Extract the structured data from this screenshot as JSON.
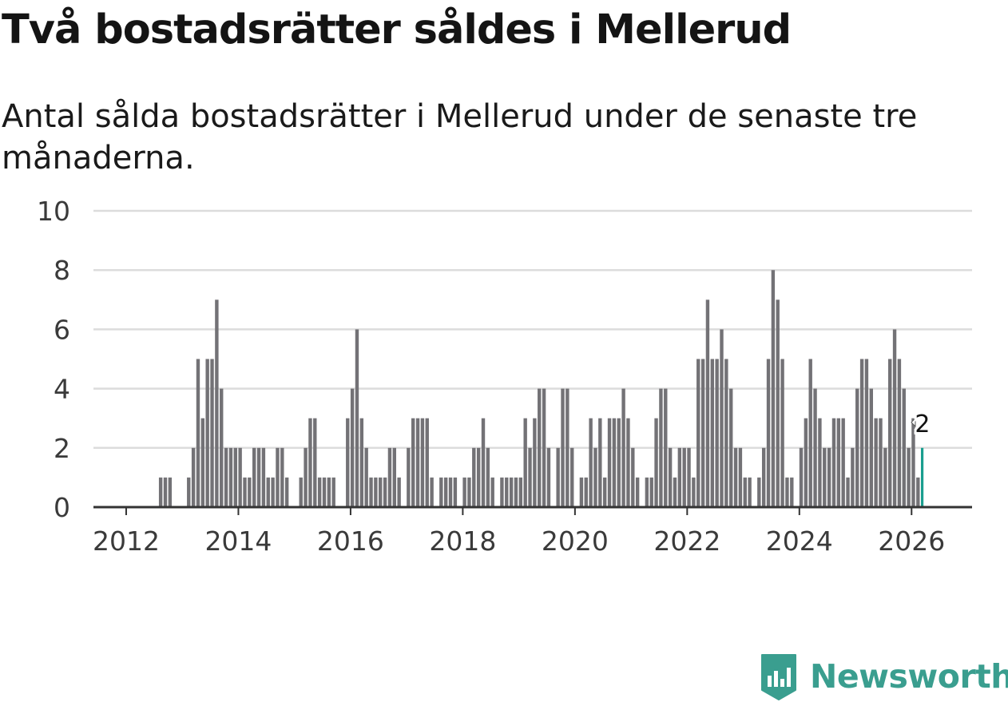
{
  "title": "Två bostadsrätter såldes i Mellerud",
  "subtitle": "Antal sålda bostadsrätter i Mellerud under de senaste tre månaderna.",
  "brand": {
    "name": "Newsworthy",
    "color": "#3a9e8f"
  },
  "colors": {
    "bar": "#737276",
    "highlight": "#1a9e8f",
    "grid": "#dcdcdc",
    "axis": "#333333",
    "tick_text": "#3a3a3a"
  },
  "chart_data": {
    "type": "bar",
    "title": "Två bostadsrätter såldes i Mellerud",
    "xlabel": "",
    "ylabel": "",
    "ylim": [
      0,
      10
    ],
    "yticks": [
      "0",
      "2",
      "4",
      "6",
      "8",
      "10"
    ],
    "xticks": [
      "2012",
      "2014",
      "2016",
      "2018",
      "2020",
      "2022",
      "2024",
      "2026"
    ],
    "grid": true,
    "start": "2011-06",
    "end": "2026-02",
    "values": [
      0,
      0,
      0,
      0,
      0,
      0,
      0,
      0,
      0,
      0,
      0,
      0,
      0,
      0,
      1,
      1,
      1,
      0,
      0,
      0,
      1,
      2,
      5,
      3,
      5,
      5,
      7,
      4,
      2,
      2,
      2,
      2,
      1,
      1,
      2,
      2,
      2,
      1,
      1,
      2,
      2,
      1,
      0,
      0,
      1,
      2,
      3,
      3,
      1,
      1,
      1,
      1,
      0,
      0,
      3,
      4,
      6,
      3,
      2,
      1,
      1,
      1,
      1,
      2,
      2,
      1,
      0,
      2,
      3,
      3,
      3,
      3,
      1,
      0,
      1,
      1,
      1,
      1,
      0,
      1,
      1,
      2,
      2,
      3,
      2,
      1,
      0,
      1,
      1,
      1,
      1,
      1,
      3,
      2,
      3,
      4,
      4,
      2,
      0,
      2,
      4,
      4,
      2,
      0,
      1,
      1,
      3,
      2,
      3,
      1,
      3,
      3,
      3,
      4,
      3,
      2,
      1,
      0,
      1,
      1,
      3,
      4,
      4,
      2,
      1,
      2,
      2,
      2,
      1,
      5,
      5,
      7,
      5,
      5,
      6,
      5,
      4,
      2,
      2,
      1,
      1,
      0,
      1,
      2,
      5,
      8,
      7,
      5,
      1,
      1,
      0,
      2,
      3,
      5,
      4,
      3,
      2,
      2,
      3,
      3,
      3,
      1,
      2,
      4,
      5,
      5,
      4,
      3,
      3,
      2,
      5,
      6,
      5,
      4,
      2,
      3,
      1,
      2
    ],
    "highlight_last": true,
    "annotation": {
      "label": "2",
      "value": 2
    }
  }
}
